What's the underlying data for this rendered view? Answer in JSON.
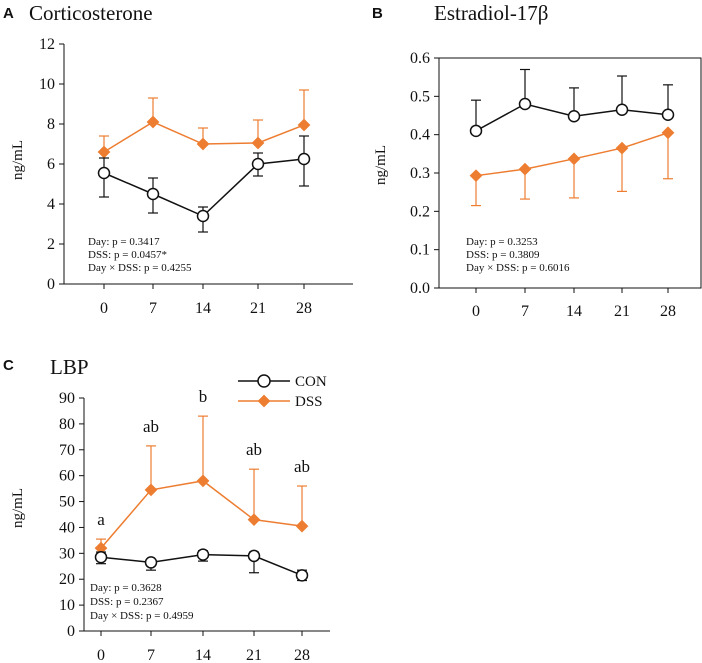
{
  "colors": {
    "con": "#111111",
    "dss": "#ED7D31",
    "axis": "#111111"
  },
  "legend": {
    "con": "CON",
    "dss": "DSS"
  },
  "chart_data": [
    {
      "id": "A",
      "type": "line",
      "panel_label": "A",
      "title": "Corticosterone",
      "xlabel": "",
      "ylabel": "ng/mL",
      "categories": [
        "0",
        "7",
        "14",
        "21",
        "28"
      ],
      "ylim": [
        0,
        12
      ],
      "yticks": [
        "0",
        "2",
        "4",
        "6",
        "8",
        "10",
        "12"
      ],
      "series": [
        {
          "name": "CON",
          "values": [
            5.55,
            4.5,
            3.4,
            6.0,
            6.25
          ],
          "error_low": [
            4.35,
            3.55,
            2.6,
            5.4,
            4.9
          ],
          "error_high": [
            6.3,
            5.3,
            3.85,
            6.55,
            7.4
          ]
        },
        {
          "name": "DSS",
          "values": [
            6.6,
            8.1,
            7.0,
            7.05,
            7.95
          ],
          "error_low": [
            6.6,
            8.1,
            7.0,
            7.05,
            7.95
          ],
          "error_high": [
            7.4,
            9.3,
            7.8,
            8.2,
            9.7
          ]
        }
      ],
      "stats": [
        "Day: p = 0.3417",
        "DSS: p = 0.0457*",
        "Day × DSS: p = 0.4255"
      ],
      "annotations": []
    },
    {
      "id": "B",
      "type": "line",
      "panel_label": "B",
      "title": "Estradiol-17β",
      "xlabel": "",
      "ylabel": "ng/mL",
      "categories": [
        "0",
        "7",
        "14",
        "21",
        "28"
      ],
      "ylim": [
        0,
        0.6
      ],
      "yticks": [
        "0.0",
        "0.1",
        "0.2",
        "0.3",
        "0.4",
        "0.5",
        "0.6"
      ],
      "series": [
        {
          "name": "CON",
          "values": [
            0.41,
            0.48,
            0.448,
            0.465,
            0.452
          ],
          "error_low": [
            0.41,
            0.48,
            0.448,
            0.465,
            0.452
          ],
          "error_high": [
            0.49,
            0.57,
            0.522,
            0.553,
            0.53
          ]
        },
        {
          "name": "DSS",
          "values": [
            0.293,
            0.31,
            0.337,
            0.365,
            0.405
          ],
          "error_low": [
            0.215,
            0.232,
            0.235,
            0.252,
            0.285
          ],
          "error_high": [
            0.293,
            0.31,
            0.337,
            0.365,
            0.405
          ]
        }
      ],
      "stats": [
        "Day: p = 0.3253",
        "DSS: p = 0.3809",
        "Day × DSS: p = 0.6016"
      ],
      "annotations": []
    },
    {
      "id": "C",
      "type": "line",
      "panel_label": "C",
      "title": "LBP",
      "xlabel": "",
      "ylabel": "ng/mL",
      "categories": [
        "0",
        "7",
        "14",
        "21",
        "28"
      ],
      "ylim": [
        0,
        90
      ],
      "yticks": [
        "0",
        "10",
        "20",
        "30",
        "40",
        "50",
        "60",
        "70",
        "80",
        "90"
      ],
      "series": [
        {
          "name": "CON",
          "values": [
            28.5,
            26.5,
            29.5,
            29.0,
            21.5
          ],
          "error_low": [
            26.0,
            23.5,
            27.0,
            22.5,
            19.5
          ],
          "error_high": [
            30.5,
            27.5,
            31.0,
            30.5,
            23.5
          ]
        },
        {
          "name": "DSS",
          "values": [
            32.0,
            54.5,
            58.0,
            43.0,
            40.5
          ],
          "error_low": [
            32.0,
            54.5,
            58.0,
            43.0,
            40.5
          ],
          "error_high": [
            35.5,
            71.5,
            83.0,
            62.5,
            56.0
          ]
        }
      ],
      "stats": [
        "Day: p = 0.3628",
        "DSS: p = 0.2367",
        "Day × DSS: p = 0.4959"
      ],
      "annotations": [
        "a",
        "ab",
        "b",
        "ab",
        "ab"
      ]
    }
  ]
}
